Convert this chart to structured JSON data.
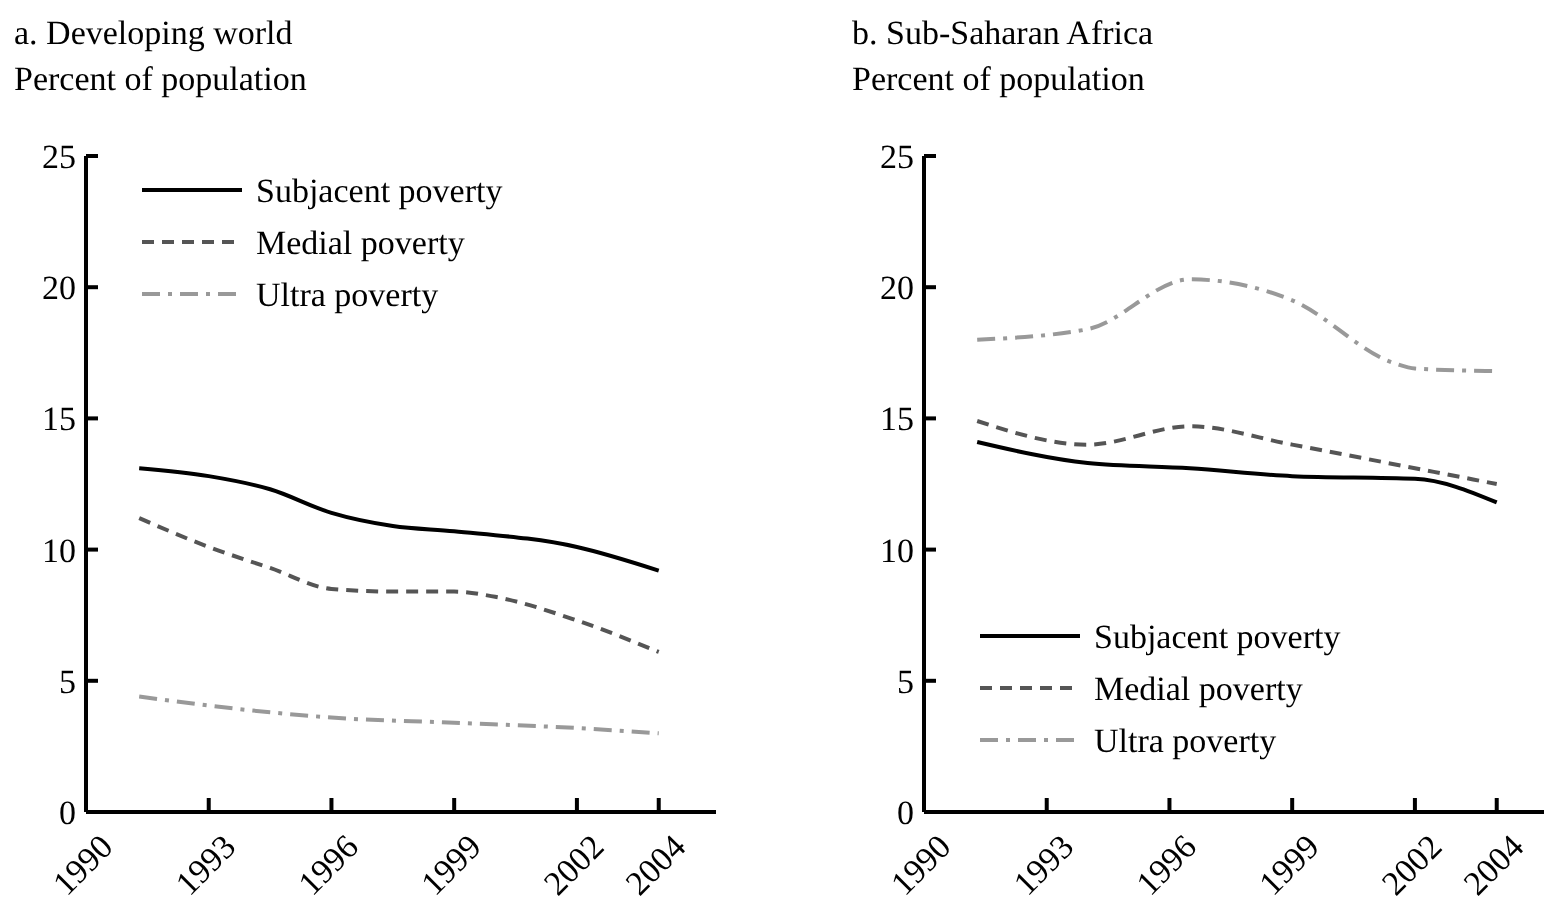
{
  "chart_data": [
    {
      "type": "line",
      "title": "a. Developing world",
      "ylabel": "Percent of population",
      "xlim": [
        1990,
        2005.4
      ],
      "xticks": [
        1990,
        1993,
        1996,
        1999,
        2002,
        2004
      ],
      "ylim": [
        0,
        25
      ],
      "yticks": [
        0,
        5,
        10,
        15,
        20,
        25
      ],
      "grid": false,
      "legend": "top left",
      "series": [
        {
          "name": "Subjacent poverty",
          "color": "#000000",
          "line_style": "solid",
          "x": [
            1991.3,
            1993,
            1994.5,
            1996,
            1997.5,
            1999,
            2002,
            2004
          ],
          "values": [
            13.1,
            12.8,
            12.3,
            11.4,
            10.9,
            10.7,
            10.1,
            9.2
          ]
        },
        {
          "name": "Medial poverty",
          "color": "#555555",
          "line_style": "dashed",
          "x": [
            1991.3,
            1993,
            1994.5,
            1996,
            1997.5,
            1999,
            2000,
            2002,
            2004
          ],
          "values": [
            11.2,
            10.1,
            9.3,
            8.5,
            8.4,
            8.4,
            8.2,
            7.3,
            6.1
          ]
        },
        {
          "name": "Ultra poverty",
          "color": "#999999",
          "line_style": "dashdot",
          "x": [
            1991.3,
            1994.5,
            1996,
            1999,
            2002,
            2004
          ],
          "values": [
            4.4,
            3.8,
            3.6,
            3.4,
            3.2,
            3.0
          ]
        }
      ]
    },
    {
      "type": "line",
      "title": "b. Sub-Saharan Africa",
      "ylabel": "Percent of population",
      "xlim": [
        1990,
        2005.4
      ],
      "xticks": [
        1990,
        1993,
        1996,
        1999,
        2002,
        2004
      ],
      "ylim": [
        0,
        25
      ],
      "yticks": [
        0,
        5,
        10,
        15,
        20,
        25
      ],
      "grid": false,
      "legend": "bottom left",
      "series": [
        {
          "name": "Subjacent poverty",
          "color": "#000000",
          "line_style": "solid",
          "x": [
            1991.3,
            1994,
            1996.5,
            1999,
            2002,
            2004
          ],
          "values": [
            14.1,
            13.3,
            13.1,
            12.8,
            12.7,
            11.8
          ]
        },
        {
          "name": "Medial poverty",
          "color": "#555555",
          "line_style": "dashed",
          "x": [
            1991.3,
            1994,
            1996.5,
            1999,
            2002,
            2004
          ],
          "values": [
            14.9,
            14.0,
            14.7,
            14.0,
            13.1,
            12.5
          ]
        },
        {
          "name": "Ultra poverty",
          "color": "#999999",
          "line_style": "dashdot",
          "x": [
            1991.3,
            1994,
            1996.5,
            1999,
            2001.5,
            2002,
            2004
          ],
          "values": [
            18.0,
            18.4,
            20.3,
            19.5,
            17.1,
            16.9,
            16.8
          ]
        }
      ]
    }
  ]
}
